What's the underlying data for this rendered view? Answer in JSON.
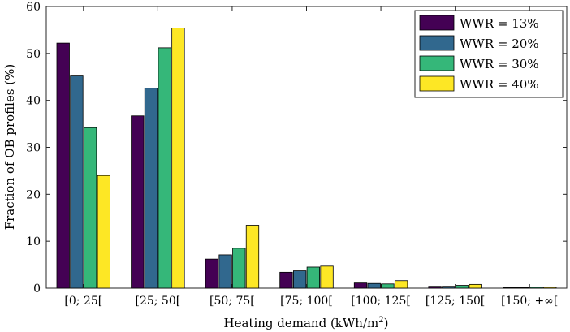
{
  "chart_data": {
    "type": "bar",
    "title": "",
    "xlabel": "Heating demand (kWh/m",
    "xlabel_sup": "2",
    "xlabel_end": ")",
    "ylabel": "Fraction of OB profiles (%)",
    "ylim": [
      0,
      60
    ],
    "yticks": [
      0,
      10,
      20,
      30,
      40,
      50,
      60
    ],
    "categories": [
      "[0; 25[",
      "[25; 50[",
      "[50; 75[",
      "[75; 100[",
      "[100; 125[",
      "[125; 150[",
      "[150; +∞["
    ],
    "series": [
      {
        "name": "WWR = 13%",
        "color": "#440154",
        "values": [
          52.2,
          36.7,
          6.2,
          3.4,
          1.1,
          0.4,
          0.1
        ]
      },
      {
        "name": "WWR = 20%",
        "color": "#31688e",
        "values": [
          45.2,
          42.6,
          7.1,
          3.7,
          1.0,
          0.4,
          0.1
        ]
      },
      {
        "name": "WWR = 30%",
        "color": "#35b779",
        "values": [
          34.2,
          51.2,
          8.5,
          4.5,
          0.9,
          0.6,
          0.2
        ]
      },
      {
        "name": "WWR = 40%",
        "color": "#fde725",
        "values": [
          24.0,
          55.4,
          13.4,
          4.7,
          1.6,
          0.8,
          0.2
        ]
      }
    ],
    "grid": false,
    "legend_position": "top-right"
  }
}
